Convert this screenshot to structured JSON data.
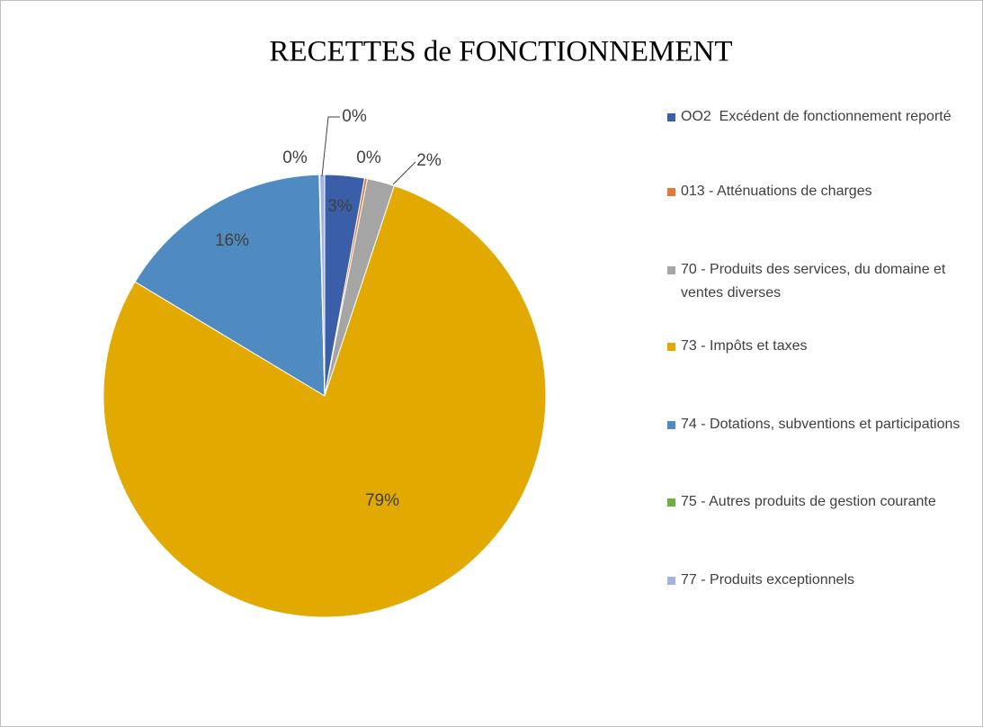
{
  "chart_data": {
    "type": "pie",
    "title": "RECETTES de FONCTIONNEMENT",
    "categories": [
      "OO2  Excédent de fonctionnement reporté",
      "013 - Atténuations de charges",
      "70 - Produits des services, du domaine et ventes diverses",
      "73 - Impôts et taxes",
      "74 - Dotations, subventions et participations",
      "75 - Autres produits de gestion courante",
      "77 - Produits exceptionnels"
    ],
    "values": [
      2.9,
      0.2,
      2.0,
      78.6,
      16.0,
      0.05,
      0.35
    ],
    "value_labels": [
      "3%",
      "0%",
      "2%",
      "79%",
      "16%",
      "0%",
      "0%"
    ],
    "colors": [
      "#3a5ea8",
      "#e07b39",
      "#a5a5a5",
      "#e2a900",
      "#4f8bc0",
      "#70ad47",
      "#a3b3e0"
    ],
    "legend": "right"
  }
}
